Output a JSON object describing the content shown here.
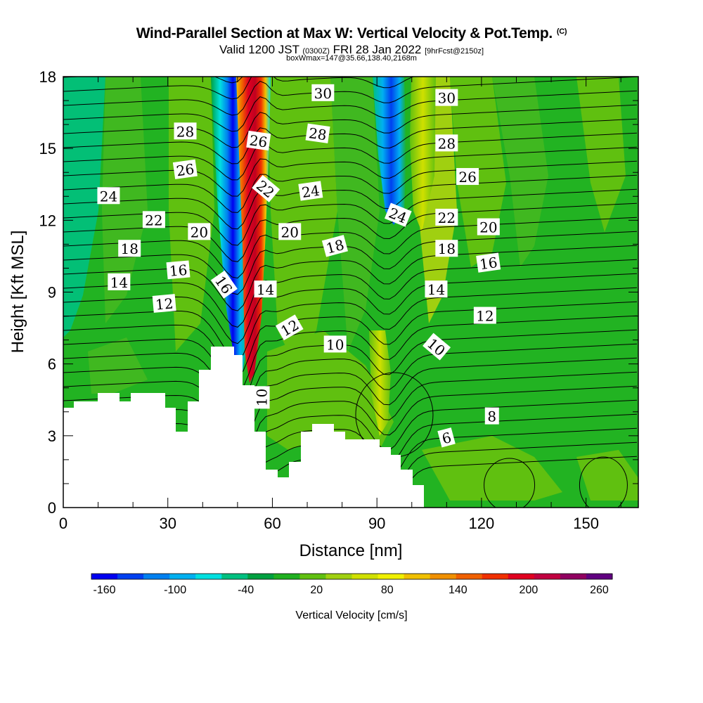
{
  "header": {
    "title": "Wind-Parallel Section at Max W: Vertical Velocity & Pot.Temp.",
    "title_tag": "(C)",
    "subtitle_a": "Valid 1200 JST",
    "subtitle_b": "(0300Z)",
    "subtitle_c": "FRI 28 Jan 2022",
    "subtitle_d": "[9hrFcst@2150z]",
    "boxline": "boxWmax=147@35.66,138.40,2168m"
  },
  "colors": {
    "background_green": "#22b322",
    "terrain": "#ffffff",
    "contour_line": "#000000",
    "frame": "#000000"
  },
  "chart_data": {
    "type": "heatmap",
    "xlabel": "Distance [nm]",
    "ylabel": "Height [Kft MSL]",
    "xlim": [
      0,
      165
    ],
    "ylim": [
      0,
      18
    ],
    "x_ticks": [
      0,
      30,
      60,
      90,
      120,
      150
    ],
    "x_tick_labels": [
      "0",
      "30",
      "60",
      "90",
      "120",
      "150"
    ],
    "y_ticks": [
      0,
      3,
      6,
      9,
      12,
      15,
      18
    ],
    "y_tick_labels": [
      "0",
      "3",
      "6",
      "9",
      "12",
      "15",
      "18"
    ],
    "colorbar": {
      "title": "Vertical Velocity [cm/s]",
      "labels": [
        "-160",
        "-100",
        "-40",
        "20",
        "80",
        "140",
        "200",
        "260"
      ],
      "colors": [
        "#0000f0",
        "#0040f0",
        "#0080f0",
        "#00b0f0",
        "#00e0e0",
        "#00c080",
        "#00a040",
        "#20b020",
        "#60c010",
        "#a0d010",
        "#d0e000",
        "#f0f000",
        "#f0c000",
        "#f09000",
        "#f06000",
        "#f03000",
        "#e00020",
        "#c00040",
        "#900060",
        "#600080"
      ]
    },
    "contour_field": "Pot.Temp. (C)",
    "contour_labels": [
      {
        "text": "30",
        "x": 74.5,
        "y": 17.3,
        "angle": 0
      },
      {
        "text": "30",
        "x": 110,
        "y": 17.1,
        "angle": 0
      },
      {
        "text": "28",
        "x": 35,
        "y": 15.7,
        "angle": 0
      },
      {
        "text": "28",
        "x": 73,
        "y": 15.6,
        "angle": 8
      },
      {
        "text": "28",
        "x": 110,
        "y": 15.2,
        "angle": 0
      },
      {
        "text": "26",
        "x": 56,
        "y": 15.3,
        "angle": 8
      },
      {
        "text": "26",
        "x": 35,
        "y": 14.1,
        "angle": -8
      },
      {
        "text": "26",
        "x": 116,
        "y": 13.8,
        "angle": 0
      },
      {
        "text": "24",
        "x": 13,
        "y": 13.0,
        "angle": 0
      },
      {
        "text": "24",
        "x": 71,
        "y": 13.2,
        "angle": -8
      },
      {
        "text": "24",
        "x": 96,
        "y": 12.2,
        "angle": 22
      },
      {
        "text": "22",
        "x": 58,
        "y": 13.3,
        "angle": 40
      },
      {
        "text": "22",
        "x": 26,
        "y": 12.0,
        "angle": 0
      },
      {
        "text": "22",
        "x": 110,
        "y": 12.1,
        "angle": 0
      },
      {
        "text": "20",
        "x": 39,
        "y": 11.5,
        "angle": 0
      },
      {
        "text": "20",
        "x": 65,
        "y": 11.5,
        "angle": 0
      },
      {
        "text": "20",
        "x": 122,
        "y": 11.7,
        "angle": 0
      },
      {
        "text": "18",
        "x": 19,
        "y": 10.8,
        "angle": 0
      },
      {
        "text": "18",
        "x": 78,
        "y": 10.9,
        "angle": -15
      },
      {
        "text": "18",
        "x": 110,
        "y": 10.8,
        "angle": 0
      },
      {
        "text": "16",
        "x": 33,
        "y": 9.9,
        "angle": -5
      },
      {
        "text": "16",
        "x": 122,
        "y": 10.2,
        "angle": -8
      },
      {
        "text": "16",
        "x": 46,
        "y": 9.3,
        "angle": 55
      },
      {
        "text": "14",
        "x": 16,
        "y": 9.4,
        "angle": 0
      },
      {
        "text": "14",
        "x": 58,
        "y": 9.1,
        "angle": 0
      },
      {
        "text": "14",
        "x": 107,
        "y": 9.1,
        "angle": 0
      },
      {
        "text": "12",
        "x": 29,
        "y": 8.5,
        "angle": -5
      },
      {
        "text": "12",
        "x": 65,
        "y": 7.5,
        "angle": -30
      },
      {
        "text": "12",
        "x": 121,
        "y": 8.0,
        "angle": 0
      },
      {
        "text": "10",
        "x": 78,
        "y": 6.8,
        "angle": 0
      },
      {
        "text": "10",
        "x": 107,
        "y": 6.7,
        "angle": 40
      },
      {
        "text": "10",
        "x": 57,
        "y": 4.6,
        "angle": -90
      },
      {
        "text": "8",
        "x": 123,
        "y": 3.8,
        "angle": 0
      },
      {
        "text": "6",
        "x": 110,
        "y": 2.9,
        "angle": -15
      }
    ],
    "velocity_bands": [
      {
        "x0": 45,
        "x1": 50,
        "value": -160
      },
      {
        "x0": 51,
        "x1": 57,
        "value": 220
      },
      {
        "x0": 91,
        "x1": 95,
        "value": -130
      },
      {
        "x0": 97,
        "x1": 103,
        "value": 80
      }
    ]
  }
}
